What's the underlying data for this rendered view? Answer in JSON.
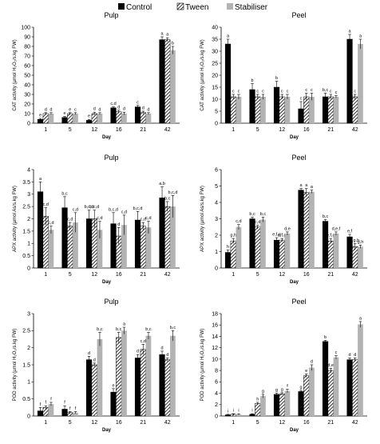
{
  "legend": [
    {
      "name": "Control",
      "style": "solid"
    },
    {
      "name": "Tween",
      "style": "hatch"
    },
    {
      "name": "Stabiliser",
      "style": "gray"
    }
  ],
  "colors": {
    "control": "#000000",
    "tween_hatch": "#000000",
    "stabiliser": "#b3b3b3"
  },
  "chart_data": [
    {
      "type": "bar",
      "title": "Pulp",
      "ylabel": "CAT activity (µmol H₂O₂/s.kg FW)",
      "xlabel": "Day",
      "categories": [
        "1",
        "5",
        "12",
        "16",
        "21",
        "42"
      ],
      "ylim": [
        0,
        100
      ],
      "yticks": [
        0,
        10,
        20,
        30,
        40,
        50,
        60,
        70,
        80,
        90,
        100
      ],
      "series": [
        {
          "name": "Control",
          "values": [
            4,
            6,
            3,
            16,
            17,
            87
          ],
          "err": [
            1,
            1,
            1,
            1,
            1.5,
            3
          ],
          "labels": [
            "e",
            "e",
            "e",
            "c,d",
            "c",
            "a"
          ]
        },
        {
          "name": "Tween",
          "values": [
            10,
            10,
            10,
            12,
            11,
            87
          ],
          "err": [
            1,
            1,
            1.5,
            1.5,
            1.5,
            2
          ],
          "labels": [
            "d",
            "e",
            "d",
            "d",
            "d",
            "a"
          ]
        },
        {
          "name": "Stabiliser",
          "values": [
            10,
            10,
            10,
            10,
            10,
            76
          ],
          "err": [
            1,
            1,
            1,
            1.5,
            1,
            4
          ],
          "labels": [
            "d",
            "c",
            "d",
            "d",
            "d",
            "b"
          ]
        }
      ]
    },
    {
      "type": "bar",
      "title": "Peel",
      "ylabel": "CAT activity (µmol H₂O₂/s.kg FW)",
      "xlabel": "Day",
      "categories": [
        "1",
        "5",
        "12",
        "16",
        "21",
        "42"
      ],
      "ylim": [
        0,
        40
      ],
      "yticks": [
        0,
        5,
        10,
        15,
        20,
        25,
        30,
        35,
        40
      ],
      "series": [
        {
          "name": "Control",
          "values": [
            33,
            14,
            15,
            6,
            11,
            35
          ],
          "err": [
            2,
            2.5,
            2.5,
            3,
            1.5,
            2
          ],
          "labels": [
            "a",
            "b",
            "b",
            "c",
            "b,c",
            "a"
          ]
        },
        {
          "name": "Tween",
          "values": [
            11,
            11,
            11,
            11,
            11,
            11
          ],
          "err": [
            1,
            1,
            1,
            1.5,
            1,
            1
          ],
          "labels": [
            "c",
            "c",
            "c",
            "c",
            "c",
            "c"
          ]
        },
        {
          "name": "Stabiliser",
          "values": [
            11,
            11,
            11,
            11,
            11,
            33
          ],
          "err": [
            1,
            1,
            1,
            1.5,
            0.5,
            2
          ],
          "labels": [
            "c",
            "c",
            "c",
            "c",
            "c",
            "a"
          ]
        }
      ]
    },
    {
      "type": "bar",
      "title": "Pulp",
      "ylabel": "APX activity (µmol As/s.kg FW)",
      "xlabel": "Day",
      "categories": [
        "1",
        "5",
        "12",
        "16",
        "21",
        "42"
      ],
      "ylim": [
        0,
        4
      ],
      "yticks": [
        0,
        0.5,
        1,
        1.5,
        2,
        2.5,
        3,
        3.5,
        4
      ],
      "series": [
        {
          "name": "Control",
          "values": [
            3.1,
            2.45,
            2.0,
            1.8,
            1.95,
            2.85
          ],
          "err": [
            0.4,
            0.45,
            0.35,
            0.45,
            0.35,
            0.45
          ],
          "labels": [
            "a",
            "b,c",
            "b,c,d",
            "b,c,d",
            "b,c,d",
            "a,b"
          ]
        },
        {
          "name": "Tween",
          "values": [
            2.1,
            1.7,
            2.0,
            1.3,
            1.7,
            2.5
          ],
          "err": [
            0.35,
            0.15,
            0.35,
            0.35,
            0.15,
            0.2
          ],
          "labels": [
            "c,d",
            "c,d",
            "b,c,d",
            "d",
            "c,d",
            "b,c"
          ]
        },
        {
          "name": "Stabiliser",
          "values": [
            1.55,
            1.85,
            1.55,
            1.75,
            1.65,
            2.5
          ],
          "err": [
            0.15,
            0.4,
            0.35,
            0.4,
            0.25,
            0.45
          ],
          "labels": [
            "c,d",
            "c,d",
            "c,d",
            "c,d",
            "c,d",
            "b,c,d"
          ]
        }
      ]
    },
    {
      "type": "bar",
      "title": "Peel",
      "ylabel": "APX activity (µmol As/s.kg FW)",
      "xlabel": "Day",
      "categories": [
        "1",
        "5",
        "12",
        "16",
        "21",
        "42"
      ],
      "ylim": [
        0,
        6
      ],
      "yticks": [
        0,
        1,
        2,
        3,
        4,
        5,
        6
      ],
      "series": [
        {
          "name": "Control",
          "values": [
            0.95,
            3.0,
            1.7,
            4.75,
            2.85,
            1.9
          ],
          "err": [
            0.15,
            0.1,
            0.15,
            0.1,
            0.1,
            0.15
          ],
          "labels": [
            "h",
            "b,c",
            "e,f,g",
            "a",
            "b,c",
            "e,f"
          ]
        },
        {
          "name": "Tween",
          "values": [
            1.65,
            2.5,
            1.7,
            4.6,
            1.65,
            1.3
          ],
          "err": [
            0.15,
            0.1,
            0.1,
            0.25,
            0.15,
            0.2
          ],
          "labels": [
            "g,h",
            "c,d",
            "e,f,g",
            "a",
            "e,f,g",
            "f,g,h"
          ]
        },
        {
          "name": "Stabiliser",
          "values": [
            2.5,
            2.95,
            2.1,
            4.65,
            2.1,
            1.3
          ],
          "err": [
            0.15,
            0.15,
            0.1,
            0.1,
            0.1,
            0.1
          ],
          "labels": [
            "c,d",
            "b,c",
            "d,e",
            "a",
            "d,e,f",
            "g,h"
          ]
        }
      ]
    },
    {
      "type": "bar",
      "title": "Pulp",
      "ylabel": "POD activity (µmol H₂O₂/s.kg FW)",
      "xlabel": "Day",
      "categories": [
        "1",
        "5",
        "12",
        "16",
        "21",
        "42"
      ],
      "ylim": [
        0,
        3
      ],
      "yticks": [
        0,
        0.5,
        1,
        1.5,
        2,
        2.5,
        3
      ],
      "series": [
        {
          "name": "Control",
          "values": [
            0.15,
            0.2,
            1.65,
            0.7,
            1.7,
            1.8
          ],
          "err": [
            0.1,
            0.1,
            0.1,
            0.1,
            0.1,
            0.1
          ],
          "labels": [
            "f",
            "f",
            "d",
            "e",
            "d",
            "d"
          ]
        },
        {
          "name": "Tween",
          "values": [
            0.25,
            0.1,
            1.5,
            2.3,
            1.95,
            1.65
          ],
          "err": [
            0.05,
            0.03,
            0.05,
            0.15,
            0.15,
            0.05
          ],
          "labels": [
            "f",
            "f",
            "d",
            "b,c",
            "c,d",
            "d"
          ]
        },
        {
          "name": "Stabiliser",
          "values": [
            0.35,
            0.1,
            2.25,
            2.5,
            2.35,
            2.35
          ],
          "err": [
            0.05,
            0.03,
            0.2,
            0.1,
            0.1,
            0.15
          ],
          "labels": [
            "f",
            "f",
            "b,c",
            "a",
            "b,c",
            "b,c"
          ]
        }
      ]
    },
    {
      "type": "bar",
      "title": "Peel",
      "ylabel": "POD activity (µmol H₂O₂/s.kg FW)",
      "xlabel": "Day",
      "categories": [
        "1",
        "5",
        "12",
        "16",
        "21",
        "42"
      ],
      "ylim": [
        0,
        18
      ],
      "yticks": [
        0,
        2,
        4,
        6,
        8,
        10,
        12,
        14,
        16,
        18
      ],
      "series": [
        {
          "name": "Control",
          "values": [
            0.2,
            0.3,
            3.8,
            4.3,
            13.1,
            9.9
          ],
          "err": [
            0.1,
            0.1,
            0.2,
            0.2,
            0.2,
            0.3
          ],
          "labels": [
            "i",
            "i",
            "g",
            "g",
            "b",
            "d"
          ]
        },
        {
          "name": "Tween",
          "values": [
            0.3,
            2.2,
            3.9,
            7.1,
            8.0,
            9.9
          ],
          "err": [
            0.1,
            0.2,
            0.2,
            0.3,
            0.4,
            0.3
          ],
          "labels": [
            "i",
            "h",
            "g",
            "e",
            "d,e",
            "d"
          ]
        },
        {
          "name": "Stabiliser",
          "values": [
            0.3,
            3.5,
            4.4,
            8.5,
            10.3,
            16.1
          ],
          "err": [
            0.1,
            0.3,
            0.3,
            0.5,
            0.3,
            0.5
          ],
          "labels": [
            "i",
            "g",
            "f",
            "d",
            "c",
            "a"
          ]
        }
      ]
    }
  ]
}
